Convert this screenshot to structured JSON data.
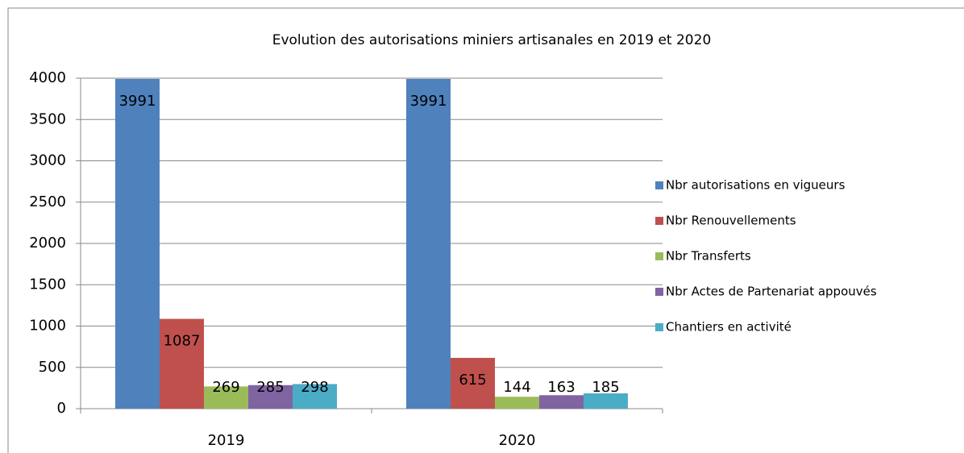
{
  "chart_data": {
    "type": "bar",
    "title": "Evolution des autorisations miniers artisanales en 2019 et 2020",
    "categories": [
      "2019",
      "2020"
    ],
    "series": [
      {
        "name": "Nbr autorisations en vigueurs",
        "color": "#4f81bd",
        "values": [
          3991,
          3991
        ]
      },
      {
        "name": "Nbr Renouvellements",
        "color": "#c0504d",
        "values": [
          1087,
          615
        ]
      },
      {
        "name": "Nbr Transferts",
        "color": "#9bbb59",
        "values": [
          269,
          144
        ]
      },
      {
        "name": "Nbr Actes de Partenariat appouvés",
        "color": "#8064a2",
        "values": [
          285,
          163
        ]
      },
      {
        "name": "Chantiers en activité",
        "color": "#4bacc6",
        "values": [
          298,
          185
        ]
      }
    ],
    "ylim": [
      0,
      4000
    ],
    "yticks": [
      0,
      500,
      1000,
      1500,
      2000,
      2500,
      3000,
      3500,
      4000
    ],
    "grid": true,
    "legend": "right"
  }
}
